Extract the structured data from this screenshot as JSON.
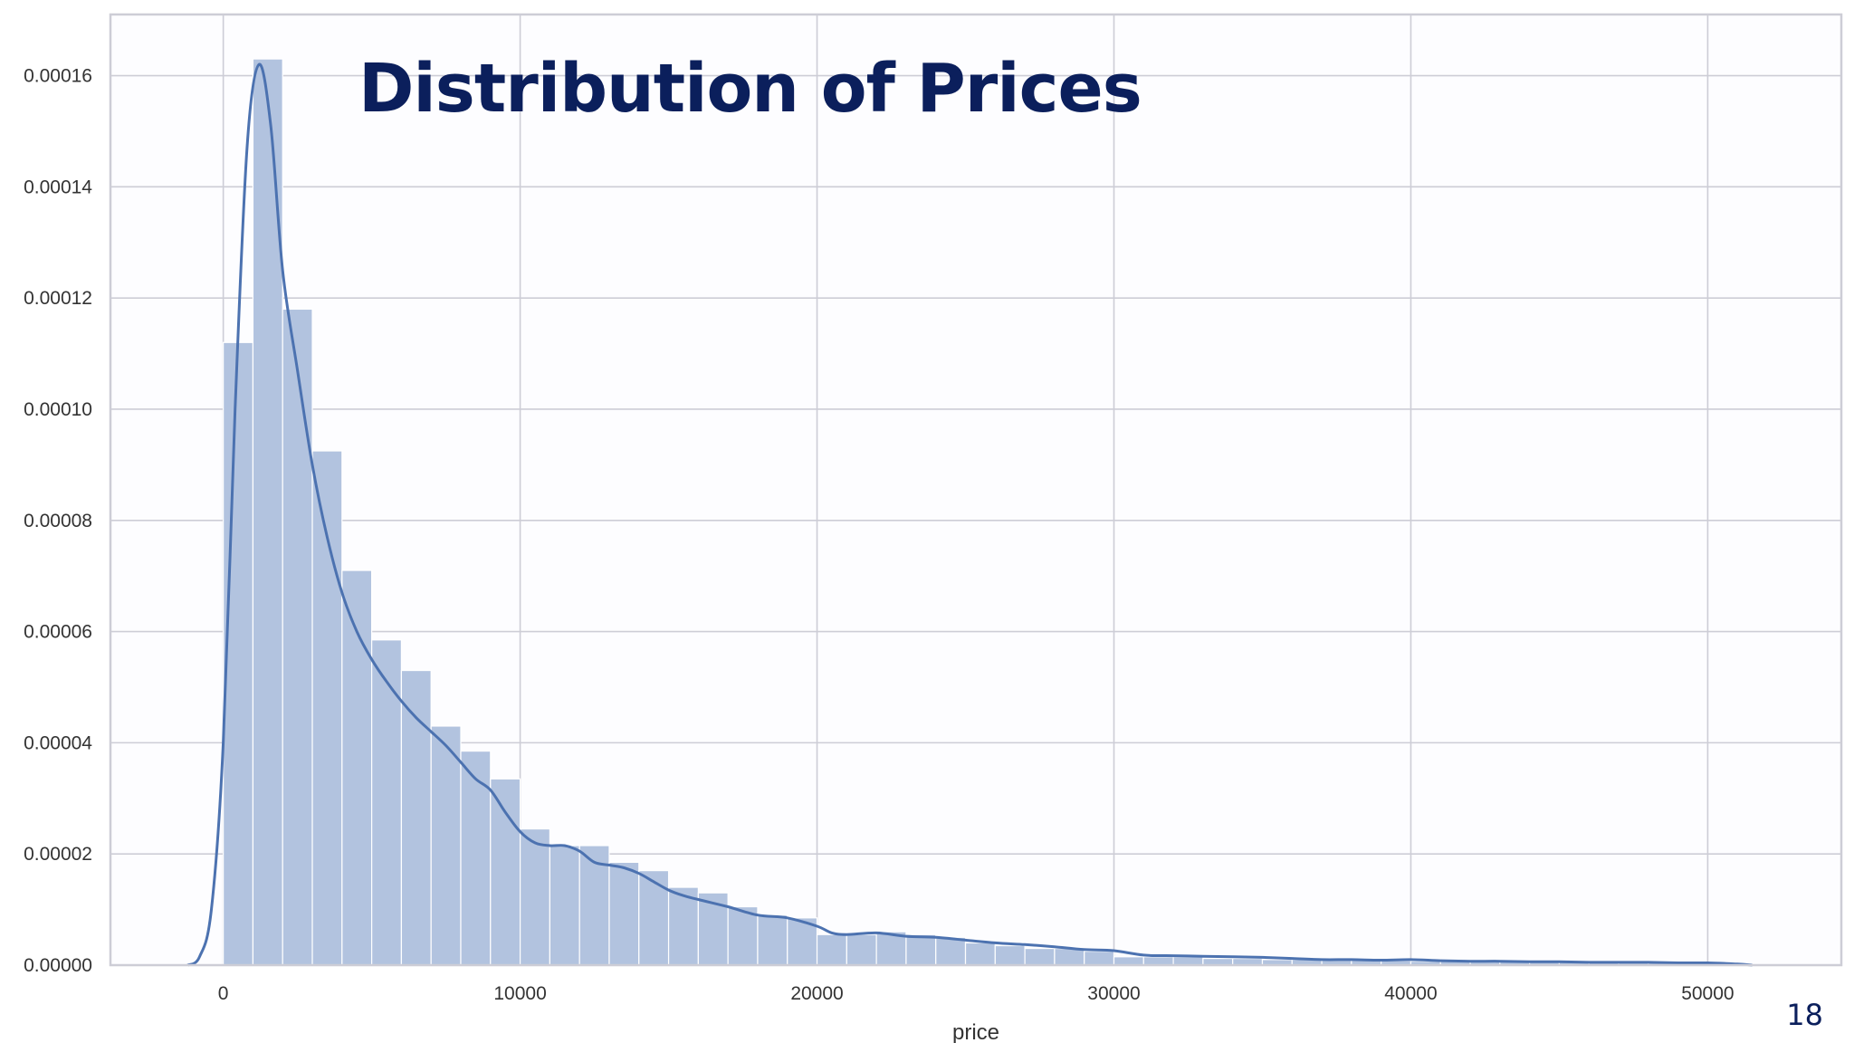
{
  "slide": {
    "page_number": "18"
  },
  "colors": {
    "bar_fill": "#b2c3df",
    "bar_edge": "#ffffff",
    "kde_line": "#4c72b0",
    "grid": "#cdcdd6",
    "plot_bg": "#fdfdff",
    "title": "#0b1f5c"
  },
  "chart_data": {
    "type": "bar",
    "subtype": "histogram_with_kde",
    "title": "Distribution of Prices",
    "xlabel": "price",
    "ylabel": "",
    "xlim": [
      -3800,
      54500
    ],
    "ylim": [
      0,
      0.000171
    ],
    "grid": true,
    "xticks": [
      0,
      10000,
      20000,
      30000,
      40000,
      50000
    ],
    "xtick_labels": [
      "0",
      "10000",
      "20000",
      "30000",
      "40000",
      "50000"
    ],
    "yticks": [
      0,
      2e-05,
      4e-05,
      6e-05,
      8e-05,
      0.0001,
      0.00012,
      0.00014,
      0.00016
    ],
    "ytick_labels": [
      "0.00000",
      "0.00002",
      "0.00004",
      "0.00006",
      "0.00008",
      "0.00010",
      "0.00012",
      "0.00014",
      "0.00016"
    ],
    "bins": {
      "start": 0,
      "width": 1000,
      "values": [
        0.000112,
        0.000163,
        0.000118,
        9.25e-05,
        7.1e-05,
        5.85e-05,
        5.3e-05,
        4.3e-05,
        3.85e-05,
        3.35e-05,
        2.45e-05,
        2.15e-05,
        2.15e-05,
        1.85e-05,
        1.7e-05,
        1.4e-05,
        1.3e-05,
        1.05e-05,
        9e-06,
        8.5e-06,
        5.5e-06,
        5.5e-06,
        6e-06,
        5.5e-06,
        5e-06,
        4e-06,
        3.5e-06,
        3e-06,
        3e-06,
        2.5e-06,
        1.5e-06,
        1.5e-06,
        1.5e-06,
        1.2e-06,
        1.2e-06,
        1e-06,
        1e-06,
        9e-07,
        9e-07,
        8e-07,
        7e-07,
        7e-07,
        6e-07,
        6e-07,
        5e-07,
        5e-07,
        5e-07,
        4e-07,
        4e-07,
        4e-07,
        3e-07
      ]
    },
    "kde": {
      "x": [
        -1200,
        -800,
        -400,
        0,
        400,
        800,
        1200,
        1600,
        2000,
        2500,
        3000,
        3500,
        4000,
        4500,
        5000,
        5500,
        6000,
        6500,
        7000,
        7500,
        8000,
        8500,
        9000,
        9500,
        10000,
        10500,
        11000,
        11500,
        12000,
        12500,
        13000,
        13500,
        14000,
        14500,
        15000,
        15500,
        16000,
        17000,
        18000,
        19000,
        20000,
        20500,
        21000,
        22000,
        23000,
        24000,
        25000,
        26000,
        27000,
        28000,
        29000,
        30000,
        31000,
        32000,
        33000,
        34000,
        35000,
        36000,
        37000,
        38000,
        39000,
        40000,
        41000,
        42000,
        43000,
        44000,
        45000,
        46000,
        47000,
        48000,
        49000,
        50000,
        51000,
        51500
      ],
      "y": [
        0,
        1.5e-06,
        1e-05,
        4e-05,
        0.0001,
        0.000147,
        0.000162,
        0.000151,
        0.000125,
        0.000107,
        9e-05,
        7.7e-05,
        6.7e-05,
        6e-05,
        5.5e-05,
        5.1e-05,
        4.75e-05,
        4.45e-05,
        4.2e-05,
        3.95e-05,
        3.65e-05,
        3.35e-05,
        3.15e-05,
        2.75e-05,
        2.4e-05,
        2.2e-05,
        2.15e-05,
        2.15e-05,
        2.05e-05,
        1.85e-05,
        1.8e-05,
        1.75e-05,
        1.65e-05,
        1.5e-05,
        1.35e-05,
        1.25e-05,
        1.18e-05,
        1.05e-05,
        9e-06,
        8.5e-06,
        7e-06,
        5.8e-06,
        5.5e-06,
        5.8e-06,
        5.2e-06,
        5e-06,
        4.5e-06,
        4e-06,
        3.7e-06,
        3.3e-06,
        2.8e-06,
        2.6e-06,
        1.8e-06,
        1.7e-06,
        1.6e-06,
        1.5e-06,
        1.4e-06,
        1.2e-06,
        1e-06,
        1e-06,
        9e-07,
        1e-06,
        8e-07,
        7e-07,
        7e-07,
        6e-07,
        6e-07,
        5e-07,
        5e-07,
        5e-07,
        4e-07,
        4e-07,
        2e-07,
        0
      ]
    }
  }
}
